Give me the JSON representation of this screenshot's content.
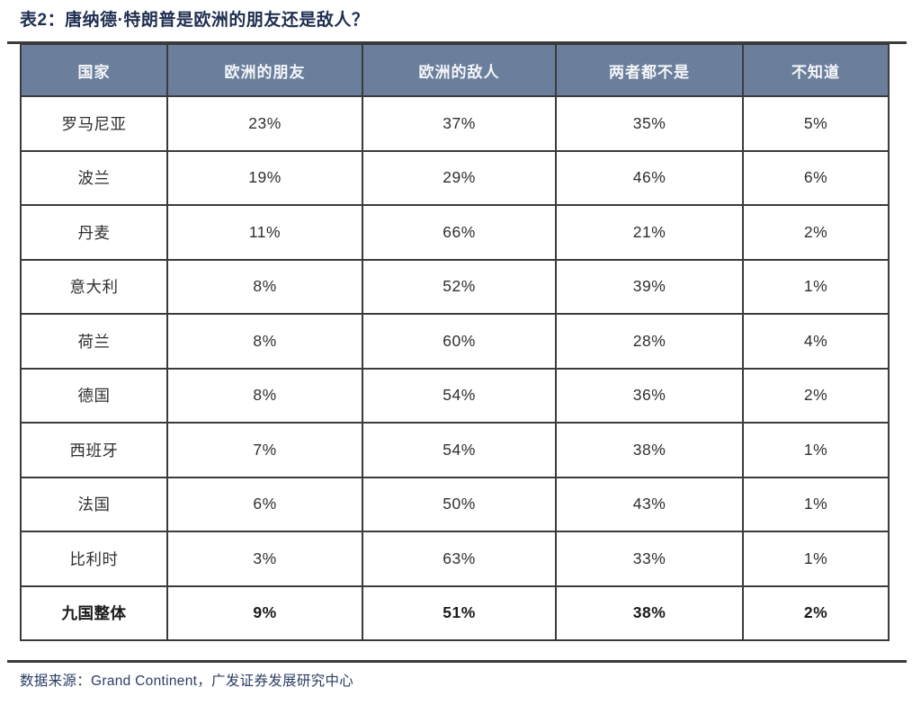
{
  "title": "表2：唐纳德·特朗普是欧洲的朋友还是敌人？",
  "source_note": "数据来源：Grand Continent，广发证券发展研究中心",
  "colors": {
    "header_bg": "#6b7f9c",
    "border": "#3b3b3b",
    "title_text": "#1f2f52",
    "footer_text": "#2b3d63",
    "body_text": "#2f2f2f",
    "page_bg": "#ffffff"
  },
  "chart_data": {
    "type": "table",
    "title": "表2：唐纳德·特朗普是欧洲的朋友还是敌人？",
    "columns": [
      "国家",
      "欧洲的朋友",
      "欧洲的敌人",
      "两者都不是",
      "不知道"
    ],
    "rows": [
      [
        "罗马尼亚",
        "23%",
        "37%",
        "35%",
        "5%"
      ],
      [
        "波兰",
        "19%",
        "29%",
        "46%",
        "6%"
      ],
      [
        "丹麦",
        "11%",
        "66%",
        "21%",
        "2%"
      ],
      [
        "意大利",
        "8%",
        "52%",
        "39%",
        "1%"
      ],
      [
        "荷兰",
        "8%",
        "60%",
        "28%",
        "4%"
      ],
      [
        "德国",
        "8%",
        "54%",
        "36%",
        "2%"
      ],
      [
        "西班牙",
        "7%",
        "54%",
        "38%",
        "1%"
      ],
      [
        "法国",
        "6%",
        "50%",
        "43%",
        "1%"
      ],
      [
        "比利时",
        "3%",
        "63%",
        "33%",
        "1%"
      ],
      [
        "九国整体",
        "9%",
        "51%",
        "38%",
        "2%"
      ]
    ],
    "bold_last_row": true,
    "source": "数据来源：Grand Continent，广发证券发展研究中心",
    "layout": {
      "grid": "on",
      "header_style": "slate-blue filled, white bold text",
      "value_alignment": "center"
    }
  }
}
